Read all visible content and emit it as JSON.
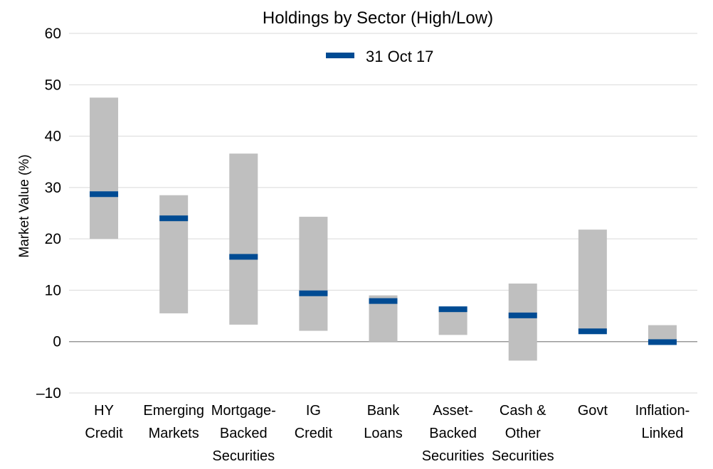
{
  "chart_data": {
    "type": "range-bar",
    "title": "Holdings by Sector (High/Low)",
    "ylabel": "Market Value (%)",
    "xlabel": "",
    "ylim": [
      -10,
      60
    ],
    "yticks": [
      -10,
      0,
      10,
      20,
      30,
      40,
      50,
      60
    ],
    "ytick_labels": [
      "–10",
      "0",
      "10",
      "20",
      "30",
      "40",
      "50",
      "60"
    ],
    "grid": true,
    "legend": {
      "position": "top-center",
      "label": "31 Oct 17"
    },
    "colors": {
      "range": "#bfbfbf",
      "marker": "#004b93",
      "grid": "#d9d9d9",
      "zero": "#9a9a9a"
    },
    "categories": [
      {
        "lines": [
          "HY",
          "Credit"
        ],
        "low": 20,
        "high": 47.5,
        "value": 28.7
      },
      {
        "lines": [
          "Emerging",
          "Markets"
        ],
        "low": 5.5,
        "high": 28.5,
        "value": 24
      },
      {
        "lines": [
          "Mortgage-",
          "Backed",
          "Securities"
        ],
        "low": 3.3,
        "high": 36.6,
        "value": 16.5
      },
      {
        "lines": [
          "IG",
          "Credit"
        ],
        "low": 2.1,
        "high": 24.3,
        "value": 9.4
      },
      {
        "lines": [
          "Bank",
          "Loans"
        ],
        "low": 0,
        "high": 9.0,
        "value": 7.9
      },
      {
        "lines": [
          "Asset-",
          "Backed",
          "Securities"
        ],
        "low": 1.3,
        "high": 6.7,
        "value": 6.3
      },
      {
        "lines": [
          "Cash &",
          "Other",
          "Securities"
        ],
        "low": -3.7,
        "high": 11.3,
        "value": 5.1
      },
      {
        "lines": [
          "Govt"
        ],
        "low": 2.1,
        "high": 21.8,
        "value": 2.0
      },
      {
        "lines": [
          "Inflation-",
          "Linked"
        ],
        "low": 0,
        "high": 3.2,
        "value": -0.1
      }
    ]
  }
}
